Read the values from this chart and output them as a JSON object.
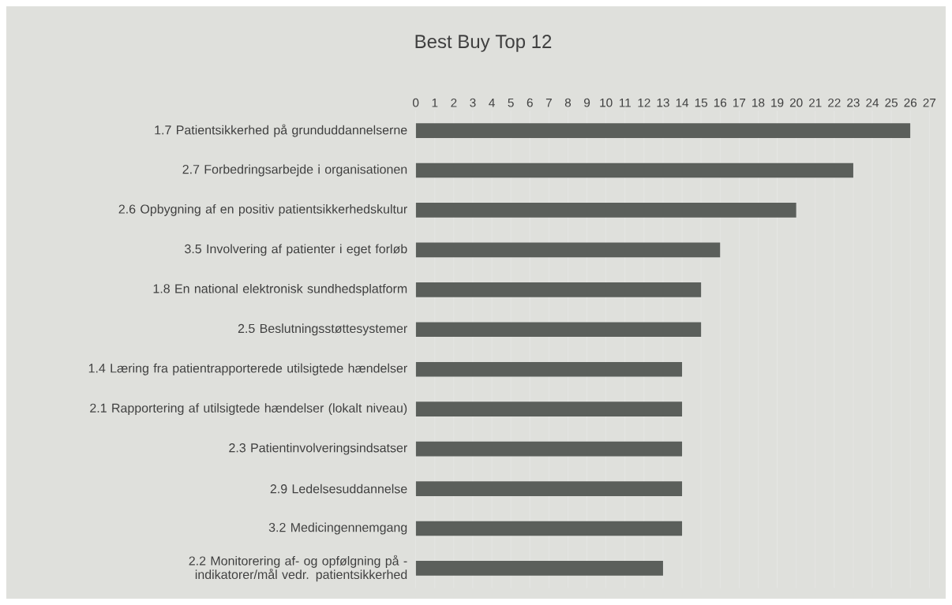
{
  "chart_data": {
    "type": "bar",
    "orientation": "horizontal",
    "title": "Best Buy Top 12",
    "categories": [
      "1.7 Patientsikkerhed på grunduddannelserne",
      "2.7 Forbedringsarbejde i organisationen",
      "2.6 Opbygning af en positiv patientsikkerhedskultur",
      "3.5 Involvering af patienter i eget forløb",
      "1.8 En national elektronisk sundhedsplatform",
      "2.5 Beslutningsstøttesystemer",
      "1.4 Læring fra patientrapporterede utilsigtede hændelser",
      "2.1 Rapportering af utilsigtede hændelser (lokalt niveau)",
      "2.3 Patientinvolveringsindsatser",
      "2.9 Ledelsesuddannelse",
      "3.2 Medicingennemgang",
      "2.2 Monitorering af- og opfølgning på - indikatorer/mål vedr. patientsikkerhed"
    ],
    "values": [
      26,
      23,
      20,
      16,
      15,
      15,
      14,
      14,
      14,
      14,
      14,
      13
    ],
    "color": "#5b5f5b",
    "xlim": [
      0,
      27
    ],
    "xticks": [
      0,
      1,
      2,
      3,
      4,
      5,
      6,
      7,
      8,
      9,
      10,
      11,
      12,
      13,
      14,
      15,
      16,
      17,
      18,
      19,
      20,
      21,
      22,
      23,
      24,
      25,
      26,
      27
    ],
    "grid": "x"
  }
}
